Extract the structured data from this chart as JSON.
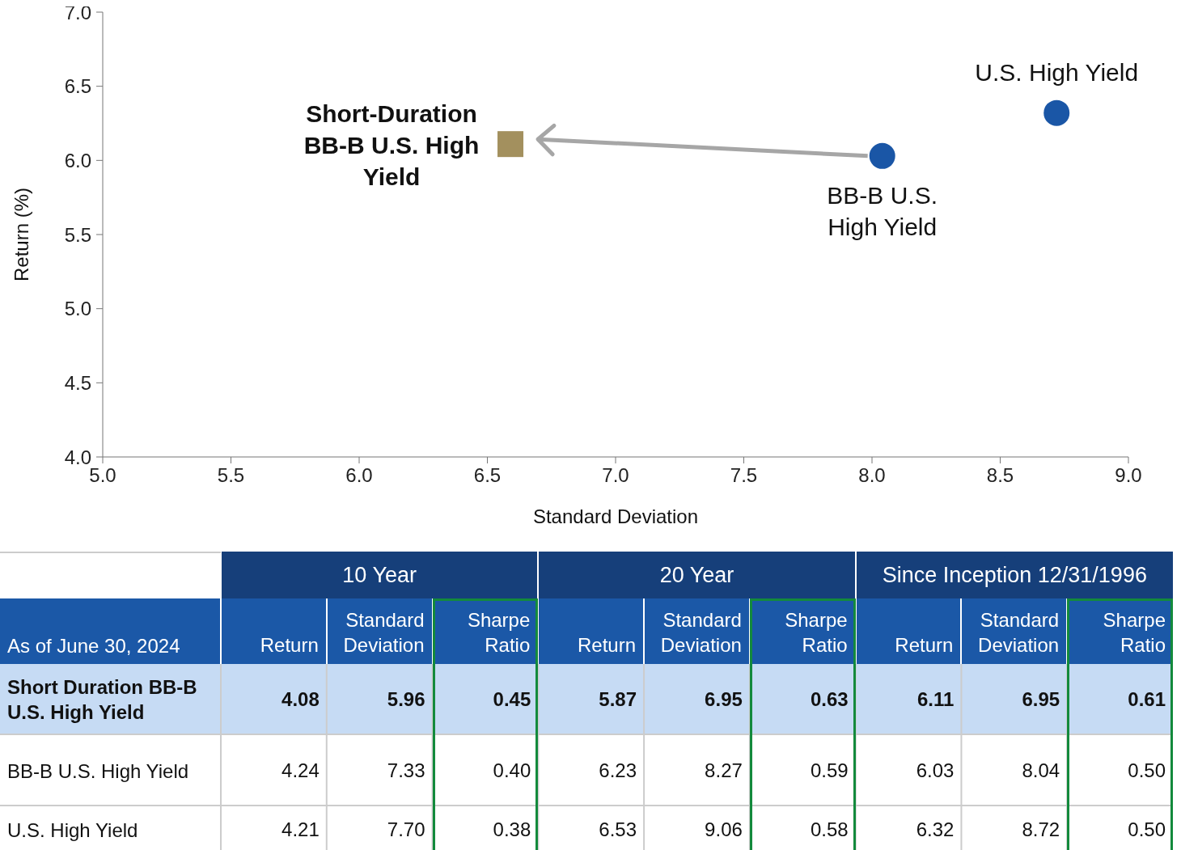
{
  "chart_data": [
    {
      "type": "scatter",
      "xlabel": "Standard Deviation",
      "ylabel": "Return (%)",
      "xlim": [
        5,
        9
      ],
      "ylim": [
        4,
        7
      ],
      "xticks": [
        {
          "value": 5,
          "label": "5.0"
        },
        {
          "value": 5.5,
          "label": "5.5"
        },
        {
          "value": 6,
          "label": "6.0"
        },
        {
          "value": 6.5,
          "label": "6.5"
        },
        {
          "value": 7,
          "label": "7.0"
        },
        {
          "value": 7.5,
          "label": "7.5"
        },
        {
          "value": 8,
          "label": "8.0"
        },
        {
          "value": 8.5,
          "label": "8.5"
        },
        {
          "value": 9,
          "label": "9.0"
        }
      ],
      "yticks": [
        {
          "value": 4,
          "label": "4.0"
        },
        {
          "value": 4.5,
          "label": "4.5"
        },
        {
          "value": 5,
          "label": "5.0"
        },
        {
          "value": 5.5,
          "label": "5.5"
        },
        {
          "value": 6,
          "label": "6.0"
        },
        {
          "value": 6.5,
          "label": "6.5"
        },
        {
          "value": 7,
          "label": "7.0"
        }
      ],
      "series": [
        {
          "name": "Short-Duration BB-B U.S. High Yield",
          "color": "#a3905e",
          "marker": "square",
          "x": [
            6.59
          ],
          "values": [
            6.11
          ]
        },
        {
          "name": "BB-B U.S. High Yield",
          "color": "#1a56a6",
          "marker": "circle",
          "x": [
            8.04
          ],
          "values": [
            6.03
          ]
        },
        {
          "name": "U.S. High Yield",
          "color": "#1a56a6",
          "marker": "circle",
          "x": [
            8.72
          ],
          "values": [
            6.32
          ]
        }
      ]
    },
    {
      "type": "heatmap",
      "ylabel": "As of June 30, 2024",
      "annotations": [
        "10 Year",
        "20 Year",
        "Since Inception 12/31/1996"
      ],
      "categories": [
        "Return",
        "Standard Deviation",
        "Sharpe Ratio",
        "Return",
        "Standard Deviation",
        "Sharpe Ratio",
        "Return",
        "Standard Deviation",
        "Sharpe Ratio"
      ],
      "y_categories": [
        "Short Duration BB-B U.S. High Yield",
        "BB-B U.S. High Yield",
        "U.S. High Yield"
      ],
      "cells": [
        [
          4.08,
          5.96,
          0.45,
          5.87,
          6.95,
          0.63,
          6.11,
          6.95,
          0.61
        ],
        [
          4.24,
          7.33,
          0.4,
          6.23,
          8.27,
          0.59,
          6.03,
          8.04,
          0.5
        ],
        [
          4.21,
          7.7,
          0.38,
          6.53,
          9.06,
          0.58,
          6.32,
          8.72,
          0.5
        ]
      ],
      "cell_labels": [
        [
          "4.08",
          "5.96",
          "0.45",
          "5.87",
          "6.95",
          "0.63",
          "6.11",
          "6.95",
          "0.61"
        ],
        [
          "4.24",
          "7.33",
          "0.40",
          "6.23",
          "8.27",
          "0.59",
          "6.03",
          "8.04",
          "0.50"
        ],
        [
          "4.21",
          "7.70",
          "0.38",
          "6.53",
          "9.06",
          "0.58",
          "6.32",
          "8.72",
          "0.50"
        ]
      ]
    }
  ]
}
